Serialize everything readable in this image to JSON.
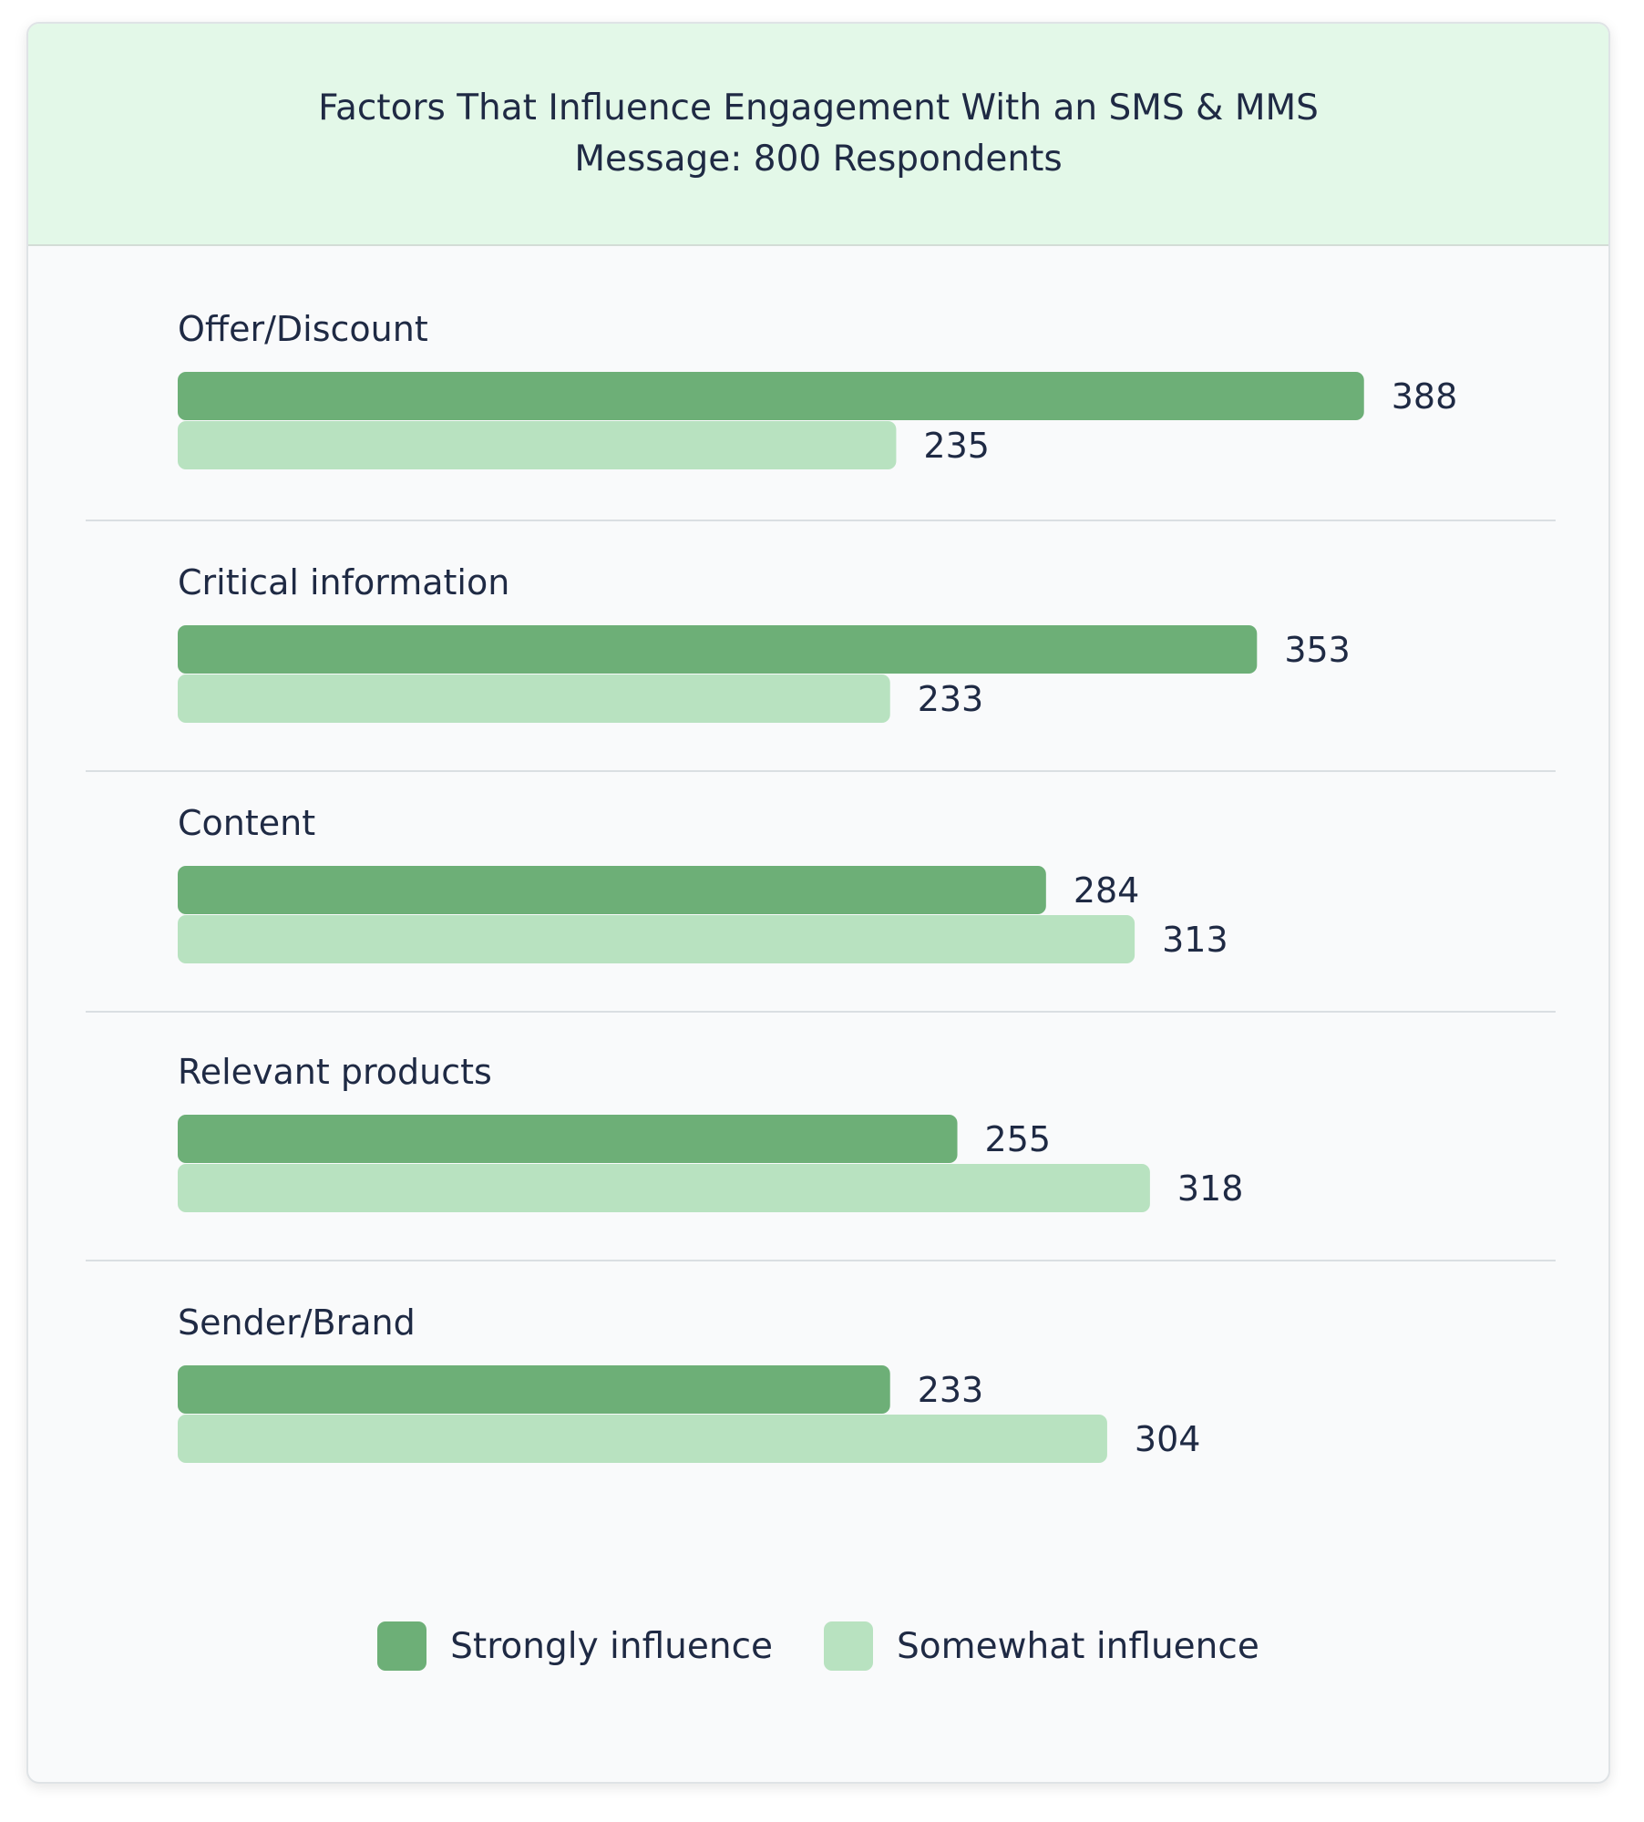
{
  "chart_data": {
    "type": "bar",
    "orientation": "horizontal",
    "title": "Factors That Influence Engagement With an SMS & MMS Message: 800 Respondents",
    "categories": [
      "Offer/Discount",
      "Critical information",
      "Content",
      "Relevant products",
      "Sender/Brand"
    ],
    "series": [
      {
        "name": "Strongly influence",
        "color": "#6daf77",
        "values": [
          388,
          353,
          284,
          255,
          233
        ]
      },
      {
        "name": "Somewhat influence",
        "color": "#b8e2c0",
        "values": [
          235,
          233,
          313,
          318,
          304
        ]
      }
    ],
    "xlim": [
      0,
      400
    ],
    "grid": false,
    "legend": "bottom-center",
    "separator_color": "#dadfe2"
  }
}
